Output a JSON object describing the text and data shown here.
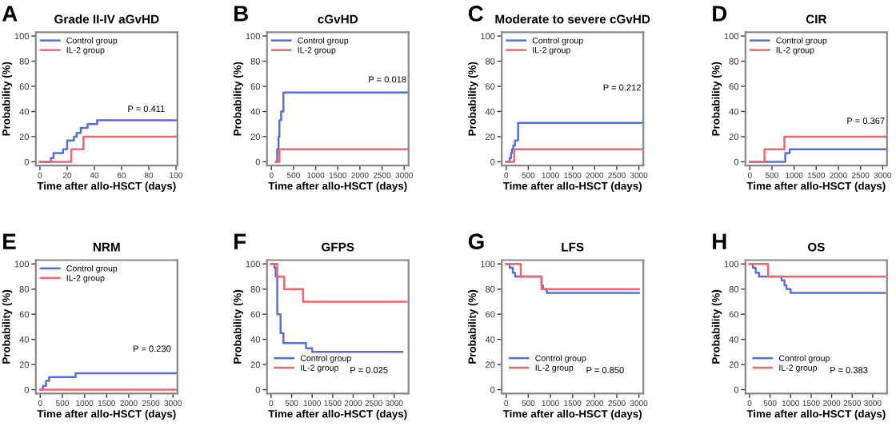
{
  "chart_data": [
    {
      "type": "step",
      "title": "Grade II-IV aGvHD",
      "xlabel": "Time after allo-HSCT (days)",
      "ylabel": "Probability (%)",
      "xlim": [
        -3,
        101
      ],
      "ylim": [
        -3,
        103
      ],
      "xticks": [
        0,
        20,
        40,
        60,
        80,
        100
      ],
      "yticks": [
        0,
        20,
        40,
        60,
        80,
        100
      ],
      "legend": "top left",
      "annotations": [
        "A",
        "P = 0.411"
      ],
      "series": [
        {
          "name": "Control group",
          "color": "#5470d8",
          "x": [
            0,
            8,
            10,
            17,
            20,
            25,
            27,
            30,
            35,
            42,
            100
          ],
          "values": [
            0,
            3,
            7,
            10,
            17,
            20,
            23,
            27,
            30,
            33,
            33
          ]
        },
        {
          "name": "IL-2 group",
          "color": "#f2636b",
          "x": [
            0,
            23,
            32,
            100
          ],
          "values": [
            0,
            10,
            20,
            20
          ]
        }
      ]
    },
    {
      "type": "step",
      "title": "cGvHD",
      "xlabel": "Time after allo-HSCT (days)",
      "ylabel": "Probability (%)",
      "xlim": [
        -100,
        3100
      ],
      "ylim": [
        -3,
        103
      ],
      "xticks": [
        0,
        500,
        1000,
        1500,
        2000,
        2500,
        3000
      ],
      "yticks": [
        0,
        20,
        40,
        60,
        80,
        100
      ],
      "legend": "top left",
      "annotations": [
        "B",
        "P = 0.018"
      ],
      "series": [
        {
          "name": "Control group",
          "color": "#5470d8",
          "x": [
            100,
            130,
            160,
            180,
            220,
            270,
            3100
          ],
          "values": [
            0,
            10,
            20,
            33,
            40,
            55,
            55
          ]
        },
        {
          "name": "IL-2 group",
          "color": "#f2636b",
          "x": [
            100,
            180,
            3100
          ],
          "values": [
            0,
            10,
            10
          ]
        }
      ]
    },
    {
      "type": "step",
      "title": "Moderate to severe cGvHD",
      "xlabel": "Time after allo-HSCT (days)",
      "ylabel": "Probability (%)",
      "xlim": [
        -100,
        3100
      ],
      "ylim": [
        -3,
        103
      ],
      "xticks": [
        0,
        500,
        1000,
        1500,
        2000,
        2500,
        3000
      ],
      "yticks": [
        0,
        20,
        40,
        60,
        80,
        100
      ],
      "legend": "top left",
      "annotations": [
        "C",
        "P = 0.212"
      ],
      "series": [
        {
          "name": "Control group",
          "color": "#5470d8",
          "x": [
            0,
            80,
            110,
            130,
            160,
            200,
            270,
            3100
          ],
          "values": [
            0,
            3,
            7,
            10,
            13,
            17,
            31,
            31
          ]
        },
        {
          "name": "IL-2 group",
          "color": "#f2636b",
          "x": [
            0,
            180,
            3100
          ],
          "values": [
            0,
            10,
            10
          ]
        }
      ]
    },
    {
      "type": "step",
      "title": "CIR",
      "xlabel": "Time after allo-HSCT (days)",
      "ylabel": "Probability (%)",
      "xlim": [
        -100,
        3100
      ],
      "ylim": [
        -3,
        103
      ],
      "xticks": [
        0,
        500,
        1000,
        1500,
        2000,
        2500,
        3000
      ],
      "yticks": [
        0,
        20,
        40,
        60,
        80,
        100
      ],
      "legend": "top left",
      "annotations": [
        "D",
        "P = 0.367"
      ],
      "series": [
        {
          "name": "Control group",
          "color": "#5470d8",
          "x": [
            0,
            800,
            900,
            3100
          ],
          "values": [
            0,
            7,
            10,
            10
          ]
        },
        {
          "name": "IL-2 group",
          "color": "#f2636b",
          "x": [
            0,
            330,
            780,
            3100
          ],
          "values": [
            0,
            10,
            20,
            20
          ]
        }
      ]
    },
    {
      "type": "step",
      "title": "NRM",
      "xlabel": "Time after allo-HSCT (days)",
      "ylabel": "Probability (%)",
      "xlim": [
        -100,
        3100
      ],
      "ylim": [
        -3,
        103
      ],
      "xticks": [
        0,
        500,
        1000,
        1500,
        2000,
        2500,
        3000
      ],
      "yticks": [
        0,
        20,
        40,
        60,
        80,
        100
      ],
      "legend": "top left",
      "annotations": [
        "E",
        "P = 0.230"
      ],
      "series": [
        {
          "name": "Control group",
          "color": "#5470d8",
          "x": [
            0,
            60,
            130,
            200,
            800,
            3100
          ],
          "values": [
            0,
            3,
            7,
            10,
            13,
            13
          ]
        },
        {
          "name": "IL-2 group",
          "color": "#f2636b",
          "x": [
            0,
            3100
          ],
          "values": [
            0,
            0
          ]
        }
      ]
    },
    {
      "type": "step",
      "title": "GFPS",
      "xlabel": "Time after allo-HSCT (days)",
      "ylabel": "Probability (%)",
      "xlim": [
        -100,
        3350
      ],
      "ylim": [
        -3,
        103
      ],
      "xticks": [
        0,
        500,
        1000,
        1500,
        2000,
        2500,
        3000
      ],
      "yticks": [
        0,
        20,
        40,
        60,
        80,
        100
      ],
      "legend": "bottom left",
      "annotations": [
        "F",
        "P = 0.025"
      ],
      "series": [
        {
          "name": "Control group",
          "color": "#5470d8",
          "x": [
            0,
            80,
            110,
            150,
            230,
            300,
            850,
            1000,
            3200
          ],
          "values": [
            100,
            97,
            90,
            60,
            45,
            37,
            33,
            30,
            30
          ]
        },
        {
          "name": "IL-2 group",
          "color": "#f2636b",
          "x": [
            0,
            150,
            320,
            780,
            3300
          ],
          "values": [
            100,
            90,
            80,
            70,
            70
          ]
        }
      ]
    },
    {
      "type": "step",
      "title": "LFS",
      "xlabel": "Time after allo-HSCT (days)",
      "ylabel": "Probability (%)",
      "xlim": [
        -100,
        3100
      ],
      "ylim": [
        -3,
        103
      ],
      "xticks": [
        0,
        500,
        1000,
        1500,
        2000,
        2500,
        3000
      ],
      "yticks": [
        0,
        20,
        40,
        60,
        80,
        100
      ],
      "legend": "bottom left",
      "annotations": [
        "G",
        "P = 0.850"
      ],
      "series": [
        {
          "name": "Control group",
          "color": "#5470d8",
          "x": [
            0,
            80,
            150,
            200,
            800,
            830,
            920,
            3000
          ],
          "values": [
            100,
            97,
            93,
            90,
            83,
            80,
            77,
            77
          ]
        },
        {
          "name": "IL-2 group",
          "color": "#f2636b",
          "x": [
            0,
            330,
            800,
            3000
          ],
          "values": [
            100,
            90,
            80,
            80
          ]
        }
      ]
    },
    {
      "type": "step",
      "title": "OS",
      "xlabel": "Time after allo-HSCT (days)",
      "ylabel": "Probability (%)",
      "xlim": [
        -100,
        3350
      ],
      "ylim": [
        -3,
        103
      ],
      "xticks": [
        0,
        500,
        1000,
        1500,
        2000,
        2500,
        3000
      ],
      "yticks": [
        0,
        20,
        40,
        60,
        80,
        100
      ],
      "legend": "bottom left",
      "annotations": [
        "H",
        "P = 0.383"
      ],
      "series": [
        {
          "name": "Control group",
          "color": "#5470d8",
          "x": [
            0,
            80,
            150,
            230,
            780,
            850,
            900,
            1000,
            3300
          ],
          "values": [
            100,
            97,
            93,
            90,
            87,
            83,
            80,
            77,
            77
          ]
        },
        {
          "name": "IL-2 group",
          "color": "#f2636b",
          "x": [
            0,
            450,
            3300
          ],
          "values": [
            100,
            90,
            90
          ]
        }
      ]
    }
  ]
}
